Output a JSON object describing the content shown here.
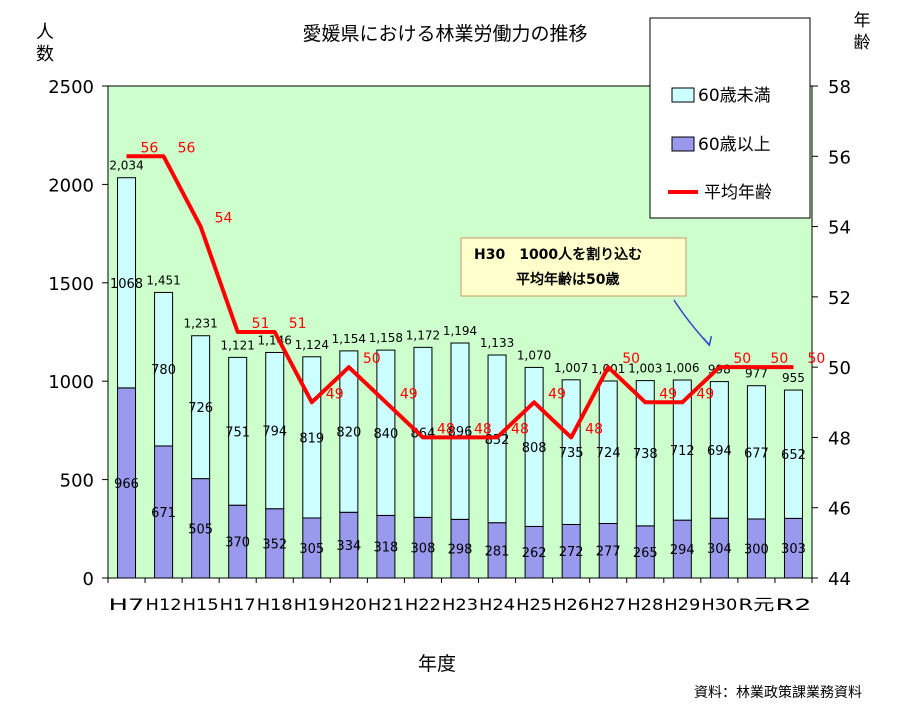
{
  "chart_data": {
    "type": "bar",
    "title": "愛媛県における林業労働力の推移",
    "xlabel": "年度",
    "ylabel_left_lines": [
      "人",
      "数"
    ],
    "ylabel_right_lines": [
      "年",
      "齢"
    ],
    "ylim_left": [
      0,
      2500
    ],
    "yticks_left": [
      0,
      500,
      1000,
      1500,
      2000,
      2500
    ],
    "ylim_right": [
      44,
      58
    ],
    "yticks_right": [
      44,
      46,
      48,
      50,
      52,
      54,
      56,
      58
    ],
    "categories": [
      "H7",
      "H12",
      "H15",
      "H17",
      "H18",
      "H19",
      "H20",
      "H21",
      "H22",
      "H23",
      "H24",
      "H25",
      "H26",
      "H27",
      "H28",
      "H29",
      "H30",
      "R元",
      "R2"
    ],
    "series": [
      {
        "name": "60歳以上",
        "values": [
          966,
          671,
          505,
          370,
          352,
          305,
          334,
          318,
          308,
          298,
          281,
          262,
          272,
          277,
          265,
          294,
          304,
          300,
          303
        ],
        "color": "#9999ee"
      },
      {
        "name": "60歳未満",
        "values": [
          1068,
          780,
          726,
          751,
          794,
          819,
          820,
          840,
          864,
          896,
          852,
          808,
          735,
          724,
          738,
          712,
          694,
          677,
          652
        ],
        "color": "#ccffff"
      }
    ],
    "totals": [
      2034,
      1451,
      1231,
      1121,
      1146,
      1124,
      1154,
      1158,
      1172,
      1194,
      1133,
      1070,
      1007,
      1001,
      1003,
      1006,
      998,
      977,
      955
    ],
    "total_labels": [
      "2,034",
      "1,451",
      "1,231",
      "1,121",
      "1,146",
      "1,124",
      "1,154",
      "1,158",
      "1,172",
      "1,194",
      "1,133",
      "1,070",
      "1,007",
      "1,001",
      "1,003",
      "1,006",
      "998",
      "977",
      "955"
    ],
    "line": {
      "name": "平均年齢",
      "values": [
        56,
        56,
        54,
        51,
        51,
        49,
        50,
        49,
        48,
        48,
        48,
        49,
        48,
        50,
        49,
        49,
        50,
        50,
        50
      ],
      "color": "#ff0000"
    },
    "legend": [
      "60歳未満",
      "60歳以上",
      "平均年齢"
    ],
    "legend_position": "top-right",
    "annotation": {
      "lines": [
        "H30　1000人を割り込む",
        "平均年齢は50歳"
      ]
    },
    "source": "資料：林業政策課業務資料",
    "plot_bg": "#ccffcc"
  }
}
